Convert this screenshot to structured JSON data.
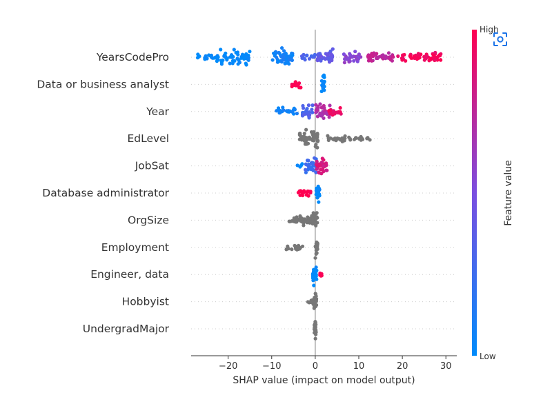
{
  "chart_data": {
    "type": "scatter",
    "subtype": "shap-beeswarm",
    "xlabel": "SHAP value (impact on model output)",
    "xlim": [
      -28.5,
      32.5
    ],
    "xticks": [
      -20,
      -10,
      0,
      10,
      20,
      30
    ],
    "xtick_labels": [
      "−20",
      "−10",
      "0",
      "10",
      "20",
      "30"
    ],
    "colorbar": {
      "label": "Feature value",
      "high": "High",
      "low": "Low",
      "low_color": "#008bfb",
      "high_color": "#ff0051"
    },
    "neutral_color": "#777777",
    "features": [
      {
        "name": "YearsCodePro",
        "colored": true,
        "groups": [
          {
            "center": -24.5,
            "spread": 2.5,
            "count": 22,
            "width": 5,
            "value": 0.0
          },
          {
            "center": -18.5,
            "spread": 3.5,
            "count": 48,
            "width": 9,
            "value": 0.02
          },
          {
            "center": -7.5,
            "spread": 2.3,
            "count": 52,
            "width": 10,
            "value": 0.08
          },
          {
            "center": -1.5,
            "spread": 1.6,
            "count": 14,
            "width": 4,
            "value": 0.3
          },
          {
            "center": 2.3,
            "spread": 1.8,
            "count": 38,
            "width": 10,
            "value": 0.4
          },
          {
            "center": 8.5,
            "spread": 2.0,
            "count": 30,
            "width": 8,
            "value": 0.55
          },
          {
            "center": 15,
            "spread": 3.0,
            "count": 40,
            "width": 7,
            "value": 0.75
          },
          {
            "center": 24,
            "spread": 5.0,
            "count": 60,
            "width": 7,
            "value": 0.95
          }
        ]
      },
      {
        "name": "Data or business analyst",
        "colored": true,
        "groups": [
          {
            "center": -4.5,
            "spread": 1.2,
            "count": 20,
            "width": 6,
            "value": 1.0
          },
          {
            "center": 1.8,
            "spread": 0.4,
            "count": 24,
            "width": 12,
            "value": 0.0
          }
        ]
      },
      {
        "name": "Year",
        "colored": true,
        "groups": [
          {
            "center": -6.5,
            "spread": 2.5,
            "count": 22,
            "width": 5,
            "value": 0.05
          },
          {
            "center": -1.8,
            "spread": 1.2,
            "count": 26,
            "width": 10,
            "value": 0.3
          },
          {
            "center": 1.8,
            "spread": 1.8,
            "count": 36,
            "width": 11,
            "value": 0.7
          },
          {
            "center": 4.5,
            "spread": 1.6,
            "count": 18,
            "width": 6,
            "value": 0.95
          }
        ]
      },
      {
        "name": "EdLevel",
        "colored": false,
        "groups": [
          {
            "center": -1.5,
            "spread": 2.2,
            "count": 55,
            "width": 11
          },
          {
            "center": 7.0,
            "spread": 4.5,
            "count": 32,
            "width": 4
          },
          {
            "center": 11.8,
            "spread": 1.2,
            "count": 7,
            "width": 3
          }
        ]
      },
      {
        "name": "JobSat",
        "colored": true,
        "groups": [
          {
            "center": -3.5,
            "spread": 0.6,
            "count": 4,
            "width": 3,
            "value": 0.0
          },
          {
            "center": -1.0,
            "spread": 1.3,
            "count": 28,
            "width": 10,
            "value": 0.25
          },
          {
            "center": 1.5,
            "spread": 1.3,
            "count": 34,
            "width": 12,
            "value": 0.85
          }
        ]
      },
      {
        "name": "Database administrator",
        "colored": true,
        "groups": [
          {
            "center": -2.5,
            "spread": 1.5,
            "count": 18,
            "width": 5,
            "value": 1.0
          },
          {
            "center": 0.6,
            "spread": 0.4,
            "count": 26,
            "width": 12,
            "value": 0.0
          }
        ]
      },
      {
        "name": "OrgSize",
        "colored": false,
        "groups": [
          {
            "center": -3.0,
            "spread": 3.0,
            "count": 44,
            "width": 6
          },
          {
            "center": -0.2,
            "spread": 0.8,
            "count": 22,
            "width": 11
          }
        ]
      },
      {
        "name": "Employment",
        "colored": false,
        "groups": [
          {
            "center": -4.8,
            "spread": 2.0,
            "count": 20,
            "width": 5
          },
          {
            "center": 0.3,
            "spread": 0.3,
            "count": 22,
            "width": 13
          }
        ]
      },
      {
        "name": "Engineer, data",
        "colored": true,
        "groups": [
          {
            "center": -0.1,
            "spread": 0.5,
            "count": 28,
            "width": 11,
            "value": 0.0
          },
          {
            "center": 1.0,
            "spread": 0.5,
            "count": 5,
            "width": 3,
            "value": 1.0
          }
        ]
      },
      {
        "name": "Hobbyist",
        "colored": false,
        "groups": [
          {
            "center": -0.8,
            "spread": 1.2,
            "count": 10,
            "width": 4
          },
          {
            "center": 0.0,
            "spread": 0.3,
            "count": 22,
            "width": 12
          }
        ]
      },
      {
        "name": "UndergradMajor",
        "colored": false,
        "groups": [
          {
            "center": 0.0,
            "spread": 0.2,
            "count": 26,
            "width": 13
          }
        ]
      }
    ]
  }
}
